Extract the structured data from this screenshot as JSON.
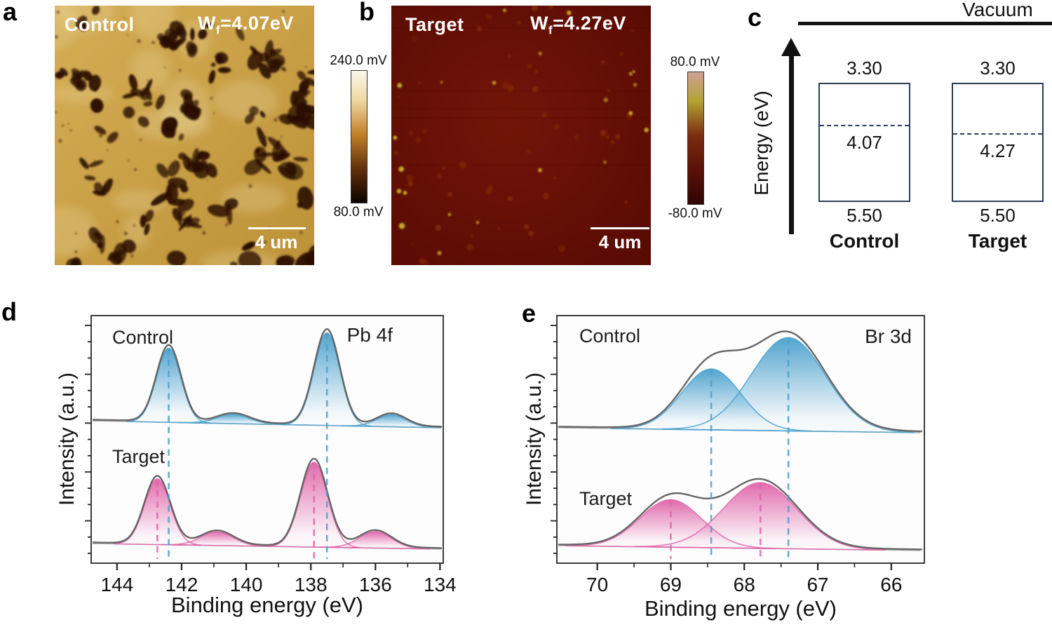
{
  "colors": {
    "series_control": "#4aa0cd",
    "series_target": "#df63a8",
    "envelope": "#5e5e5e",
    "background_line": "#b8b8b8",
    "diagram_border": "#2d3d58",
    "afm_a_base": "#c9a045",
    "afm_a_blob": "#2a1103",
    "afm_b_base": "#6e1207",
    "afm_b_dot": "#d9b822",
    "colorbar_a": [
      "#fbf7ec",
      "#eed9a2",
      "#c58028",
      "#5f2f0a",
      "#0d0300"
    ],
    "colorbar_b": [
      "#d0a193",
      "#b2a233",
      "#7c2c10",
      "#591007",
      "#300503"
    ]
  },
  "panels": {
    "a": {
      "letter": "a",
      "sample_label": "Control",
      "wf": {
        "base": "W",
        "sub": "f",
        "rest": "=4.07eV"
      },
      "scale_bar_label": "4 um",
      "colorbar": {
        "top_label": "240.0 mV",
        "bottom_label": "80.0 mV"
      }
    },
    "b": {
      "letter": "b",
      "sample_label": "Target",
      "wf": {
        "base": "W",
        "sub": "f",
        "rest": "=4.27eV"
      },
      "scale_bar_label": "4 um",
      "colorbar": {
        "top_label": "80.0 mV",
        "bottom_label": "-80.0 mV"
      }
    },
    "c": {
      "letter": "c",
      "vacuum_label": "Vacuum",
      "energy_axis_label": "Energy (eV)",
      "diagrams": [
        {
          "name": "Control",
          "upper_level": "3.30",
          "work_function": "4.07",
          "lower_level": "5.50"
        },
        {
          "name": "Target",
          "upper_level": "3.30",
          "work_function": "4.27",
          "lower_level": "5.50"
        }
      ]
    },
    "d": {
      "letter": "d",
      "title": "Pb 4f",
      "control_label": "Control",
      "target_label": "Target"
    },
    "e": {
      "letter": "e",
      "title": "Br 3d",
      "control_label": "Control",
      "target_label": "Target"
    }
  },
  "chart_data": [
    {
      "panel": "d",
      "type": "line",
      "title": "Pb 4f",
      "xlabel": "Binding energy (eV)",
      "ylabel": "Intensity (a.u.)",
      "x_axis_reversed": true,
      "xlim": [
        144.8,
        133.9
      ],
      "x_major_ticks": [
        144,
        142,
        140,
        138,
        136,
        134
      ],
      "x_minor_ticks": [
        143,
        141,
        139,
        137,
        135
      ],
      "y_units": "arbitrary",
      "series": [
        {
          "name": "Control",
          "color": "#4aa0cd",
          "peaks": [
            {
              "center": 142.4,
              "height": 0.8,
              "sigma": 0.38
            },
            {
              "center": 140.4,
              "height": 0.1,
              "sigma": 0.5
            },
            {
              "center": 137.5,
              "height": 1.0,
              "sigma": 0.4
            },
            {
              "center": 135.5,
              "height": 0.13,
              "sigma": 0.45
            }
          ],
          "guide_lines": [
            142.4,
            137.5
          ]
        },
        {
          "name": "Target",
          "color": "#df63a8",
          "peaks": [
            {
              "center": 142.75,
              "height": 0.72,
              "sigma": 0.4
            },
            {
              "center": 140.9,
              "height": 0.15,
              "sigma": 0.5
            },
            {
              "center": 137.9,
              "height": 0.93,
              "sigma": 0.42
            },
            {
              "center": 136.0,
              "height": 0.18,
              "sigma": 0.5
            }
          ],
          "guide_lines": [
            142.75,
            137.9
          ]
        }
      ]
    },
    {
      "panel": "e",
      "type": "line",
      "title": "Br 3d",
      "xlabel": "Binding energy (eV)",
      "ylabel": "Intensity (a.u.)",
      "x_axis_reversed": true,
      "xlim": [
        70.55,
        65.55
      ],
      "x_major_ticks": [
        70,
        69,
        68,
        67,
        66
      ],
      "x_minor_ticks": [
        69.5,
        68.5,
        67.5,
        66.5
      ],
      "y_units": "arbitrary",
      "series": [
        {
          "name": "Control",
          "color": "#4aa0cd",
          "peaks": [
            {
              "center": 68.45,
              "height": 0.62,
              "sigma": 0.4
            },
            {
              "center": 67.4,
              "height": 0.95,
              "sigma": 0.5
            }
          ],
          "guide_lines": [
            68.45,
            67.4
          ]
        },
        {
          "name": "Target",
          "color": "#df63a8",
          "peaks": [
            {
              "center": 69.0,
              "height": 0.52,
              "sigma": 0.42
            },
            {
              "center": 67.78,
              "height": 0.72,
              "sigma": 0.5
            }
          ],
          "guide_lines": [
            69.0,
            67.78
          ]
        }
      ]
    }
  ]
}
